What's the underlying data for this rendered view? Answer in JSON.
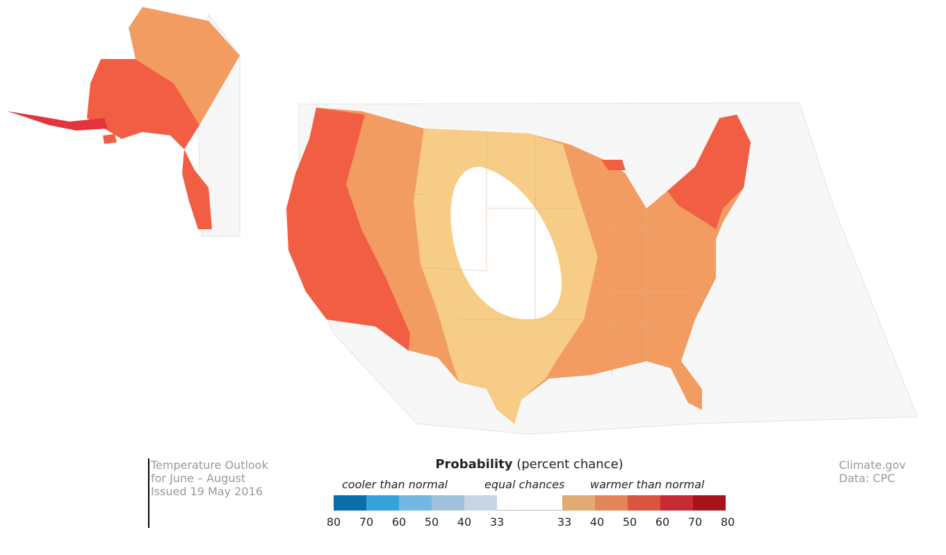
{
  "title_block": {
    "line1": "Temperature Outlook",
    "line2": "for June – August",
    "line3": "Issued 19 May 2016"
  },
  "legend": {
    "title_bold": "Probability",
    "title_rest": " (percent chance)",
    "cooler_label": "cooler than normal",
    "equal_label": "equal chances",
    "warmer_label": "warmer than normal",
    "cool_ticks": [
      "80",
      "70",
      "60",
      "50",
      "40",
      "33"
    ],
    "warm_ticks": [
      "33",
      "40",
      "50",
      "60",
      "70",
      "80"
    ],
    "cool_colors": [
      "#0a6eaa",
      "#35a2dc",
      "#72b8e3",
      "#a2c1dc",
      "#c6d5e6"
    ],
    "warm_colors": [
      "#e0aa72",
      "#e3875a",
      "#d8553e",
      "#c52c35",
      "#a6141c"
    ]
  },
  "credit": {
    "line1": "Climate.gov",
    "line2": "Data: CPC"
  },
  "map_colors": {
    "above_33_40": "#f6cc86",
    "above_40_50": "#f29c62",
    "above_50_60": "#f25e43",
    "above_60_70": "#e2343a",
    "equal_chances": "#ffffff",
    "background_land": "#f7f7f7"
  }
}
